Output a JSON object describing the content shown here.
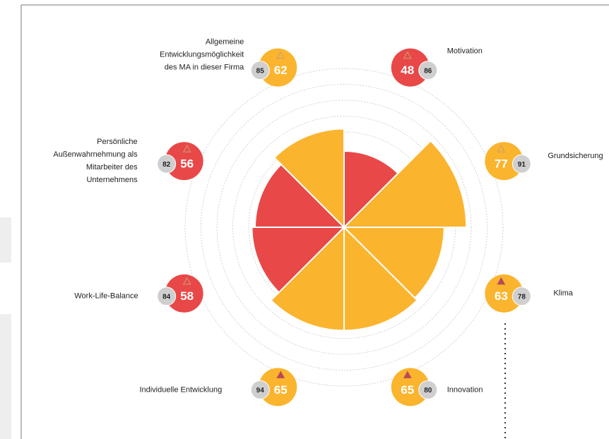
{
  "chart_data": {
    "type": "polar_area",
    "categories": [
      [
        "Motivation"
      ],
      [
        "Grundsicherung"
      ],
      [
        "Klima"
      ],
      [
        "Innovation"
      ],
      [
        "Individuelle Entwicklung"
      ],
      [
        "Work-Life-Balance"
      ],
      [
        "Persönliche",
        "Außenwahrnehmung als",
        "Mitarbeiter des",
        "Unternehmens"
      ],
      [
        "Allgemeine",
        "Entwicklungsmöglichkeit",
        "des MA in dieser Firma"
      ]
    ],
    "values": [
      48,
      77,
      63,
      65,
      65,
      58,
      56,
      62
    ],
    "reference_values": [
      86,
      91,
      78,
      80,
      94,
      84,
      82,
      85
    ],
    "colors": [
      "#e94848",
      "#fbb42e",
      "#fbb42e",
      "#fbb42e",
      "#fbb42e",
      "#e94848",
      "#e94848",
      "#fbb42e"
    ],
    "trend_markers": [
      "outline",
      "outline",
      "filled",
      "filled",
      "filled",
      "outline",
      "outline",
      "outline"
    ],
    "rlim": [
      0,
      100
    ],
    "rticks": [
      60,
      70,
      80,
      90,
      100
    ],
    "grid": true
  }
}
